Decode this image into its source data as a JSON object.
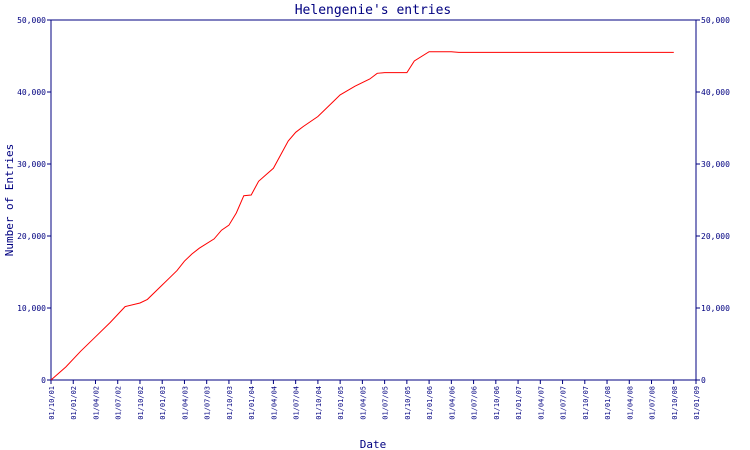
{
  "chart_data": {
    "type": "line",
    "title": "Helengenie's entries",
    "xlabel": "Date",
    "ylabel": "Number of Entries",
    "ylim": [
      0,
      50000
    ],
    "y_ticks": [
      0,
      10000,
      20000,
      30000,
      40000,
      50000
    ],
    "y_tick_labels": [
      "0",
      "10,000",
      "20,000",
      "30,000",
      "40,000",
      "50,000"
    ],
    "right_axis_mirrors_left": true,
    "x_tick_labels": [
      "01/10/01",
      "01/01/02",
      "01/04/02",
      "01/07/02",
      "01/10/02",
      "01/01/03",
      "01/04/03",
      "01/07/03",
      "01/10/03",
      "01/01/04",
      "01/04/04",
      "01/07/04",
      "01/10/04",
      "01/01/05",
      "01/04/05",
      "01/07/05",
      "01/10/05",
      "01/01/06",
      "01/04/06",
      "01/07/06",
      "01/10/06",
      "01/01/07",
      "01/04/07",
      "01/07/07",
      "01/10/07",
      "01/01/08",
      "01/04/08",
      "01/07/08",
      "01/10/08",
      "01/01/09"
    ],
    "xlim": [
      "01/10/01",
      "01/01/09"
    ],
    "grid": false,
    "series_color": "#ff0000",
    "axis_color": "#000080",
    "series": [
      {
        "points": [
          [
            "01/10/01",
            0
          ],
          [
            "01/12/01",
            1800
          ],
          [
            "01/02/02",
            4000
          ],
          [
            "01/04/02",
            6000
          ],
          [
            "01/06/02",
            8000
          ],
          [
            "01/08/02",
            10200
          ],
          [
            "01/10/02",
            10700
          ],
          [
            "01/11/02",
            11200
          ],
          [
            "01/01/03",
            13200
          ],
          [
            "01/02/03",
            14200
          ],
          [
            "01/03/03",
            15200
          ],
          [
            "01/04/03",
            16500
          ],
          [
            "01/05/03",
            17500
          ],
          [
            "01/06/03",
            18300
          ],
          [
            "01/08/03",
            19600
          ],
          [
            "01/09/03",
            20800
          ],
          [
            "01/10/03",
            21500
          ],
          [
            "01/11/03",
            23200
          ],
          [
            "01/12/03",
            25600
          ],
          [
            "01/01/04",
            25700
          ],
          [
            "01/02/04",
            27600
          ],
          [
            "01/03/04",
            28500
          ],
          [
            "01/04/04",
            29400
          ],
          [
            "01/06/04",
            33200
          ],
          [
            "01/07/04",
            34400
          ],
          [
            "01/08/04",
            35200
          ],
          [
            "01/10/04",
            36600
          ],
          [
            "01/12/04",
            38600
          ],
          [
            "01/01/05",
            39600
          ],
          [
            "01/03/05",
            40800
          ],
          [
            "01/05/05",
            41800
          ],
          [
            "01/06/05",
            42600
          ],
          [
            "01/07/05",
            42700
          ],
          [
            "01/10/05",
            42700
          ],
          [
            "01/11/05",
            44300
          ],
          [
            "01/01/06",
            45600
          ],
          [
            "01/04/06",
            45600
          ],
          [
            "01/05/06",
            45500
          ],
          [
            "01/10/08",
            45500
          ]
        ]
      }
    ]
  }
}
